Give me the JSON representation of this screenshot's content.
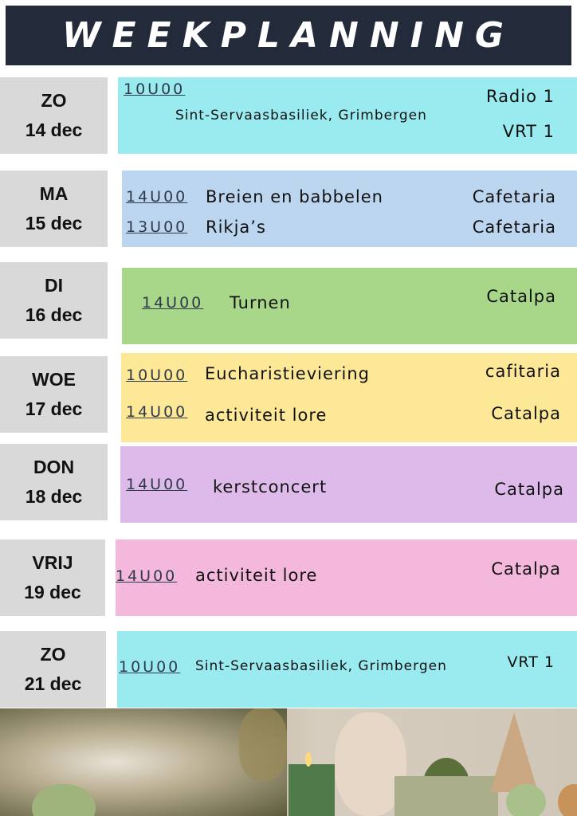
{
  "title": "WEEKPLANNING",
  "days": [
    {
      "day": "ZO",
      "date": "14 dec",
      "color": "#9aebf0",
      "events": [
        {
          "time": "10U00",
          "title": "Sint-Servaasbasiliek, Grimbergen",
          "location": "Radio 1",
          "location2": "VRT 1"
        }
      ]
    },
    {
      "day": "MA",
      "date": "15 dec",
      "color": "#bcd6f0",
      "events": [
        {
          "time": "14U00",
          "title": "Breien en babbelen",
          "location": "Cafetaria"
        },
        {
          "time": "13U00",
          "title": "Rikja’s",
          "location": "Cafetaria"
        }
      ]
    },
    {
      "day": "DI",
      "date": "16 dec",
      "color": "#a8d78a",
      "events": [
        {
          "time": "14U00",
          "title": "Turnen",
          "location": "Catalpa"
        }
      ]
    },
    {
      "day": "WOE",
      "date": "17 dec",
      "color": "#fde898",
      "events": [
        {
          "time": "10U00",
          "title": "Eucharistieviering",
          "location": "cafitaria"
        },
        {
          "time": "14U00",
          "title": "activiteit lore",
          "location": "Catalpa"
        }
      ]
    },
    {
      "day": "DON",
      "date": "18 dec",
      "color": "#ddbaea",
      "events": [
        {
          "time": "14U00",
          "title": "kerstconcert",
          "location": "Catalpa"
        }
      ]
    },
    {
      "day": "VRIJ",
      "date": "19 dec",
      "color": "#f4b8dc",
      "events": [
        {
          "time": "14U00",
          "title": "activiteit lore",
          "location": "Catalpa"
        }
      ]
    },
    {
      "day": "ZO",
      "date": "21 dec",
      "color": "#9aebf0",
      "events": [
        {
          "time": "10U00",
          "title": "Sint-Servaasbasiliek, Grimbergen",
          "location": "VRT 1"
        }
      ]
    }
  ]
}
